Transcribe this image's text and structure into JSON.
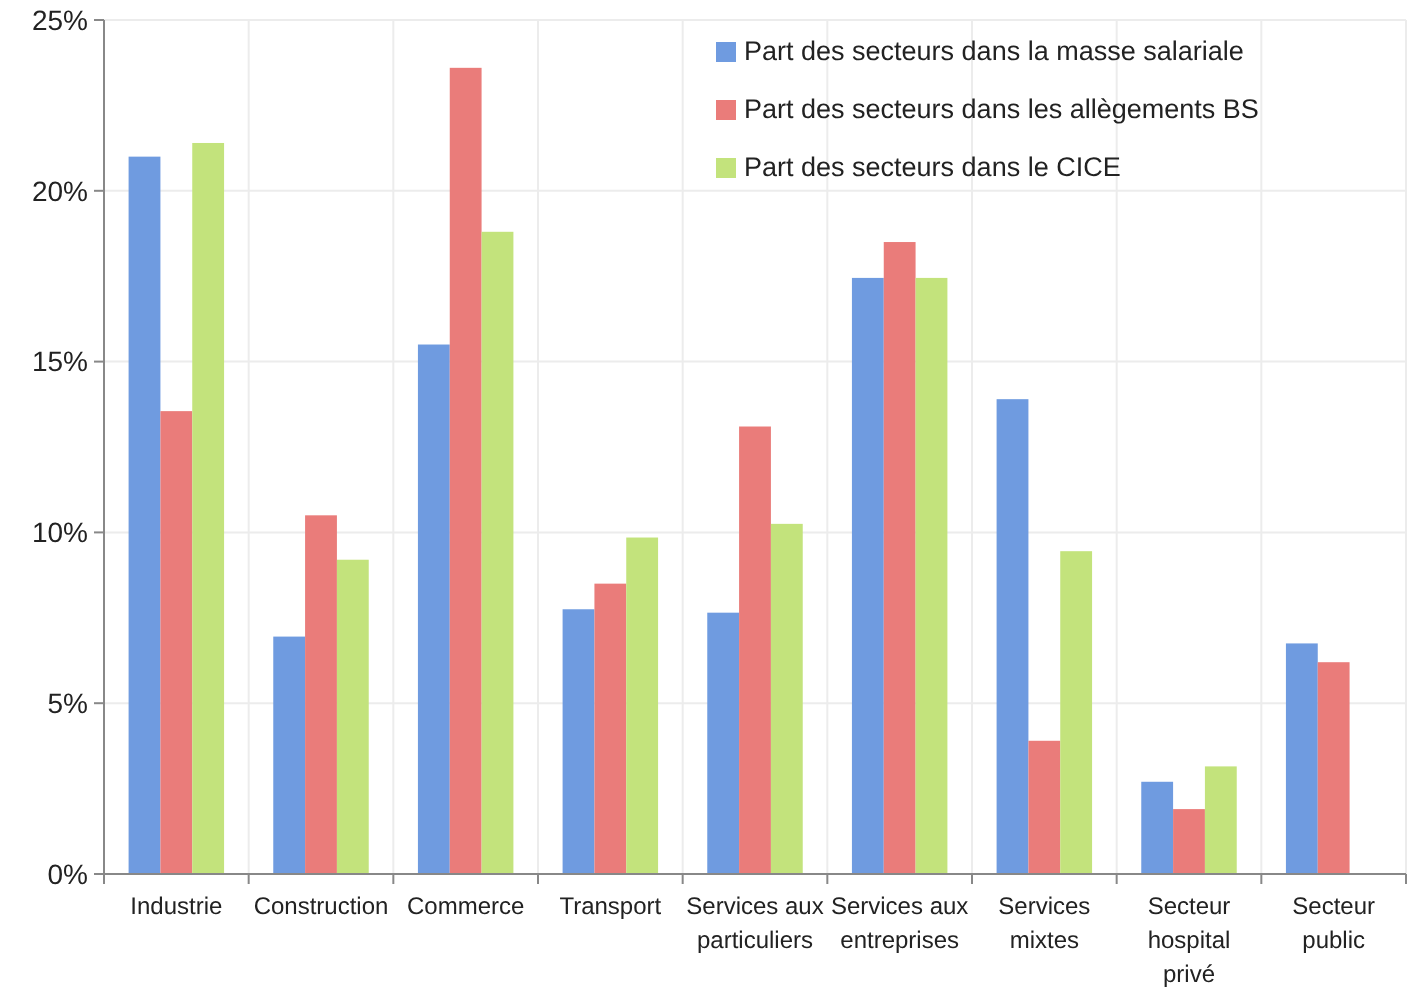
{
  "chart_data": {
    "type": "bar",
    "categories": [
      "Industrie",
      "Construction",
      "Commerce",
      "Transport",
      "Services aux particuliers",
      "Services aux entreprises",
      "Services mixtes",
      "Secteur hospital privé",
      "Secteur public"
    ],
    "series": [
      {
        "name": "Part des secteurs dans la masse salariale",
        "color": "#6f9be0",
        "values": [
          21.0,
          6.95,
          15.5,
          7.75,
          7.65,
          17.45,
          13.9,
          2.7,
          6.75
        ]
      },
      {
        "name": "Part des secteurs dans les allègements BS",
        "color": "#ea7c7a",
        "values": [
          13.55,
          10.5,
          23.6,
          8.5,
          13.1,
          18.5,
          3.9,
          1.9,
          6.2
        ]
      },
      {
        "name": "Part des secteurs dans le CICE",
        "color": "#c3e37c",
        "values": [
          21.4,
          9.2,
          18.8,
          9.85,
          10.25,
          17.45,
          9.45,
          3.15,
          null
        ]
      }
    ],
    "ylim": [
      0,
      25
    ],
    "yticks": [
      {
        "value": 0,
        "label": "0%"
      },
      {
        "value": 5,
        "label": "5%"
      },
      {
        "value": 10,
        "label": "10%"
      },
      {
        "value": 15,
        "label": "15%"
      },
      {
        "value": 20,
        "label": "20%"
      },
      {
        "value": 25,
        "label": "25%"
      }
    ],
    "grid": true,
    "legend": "top right"
  }
}
